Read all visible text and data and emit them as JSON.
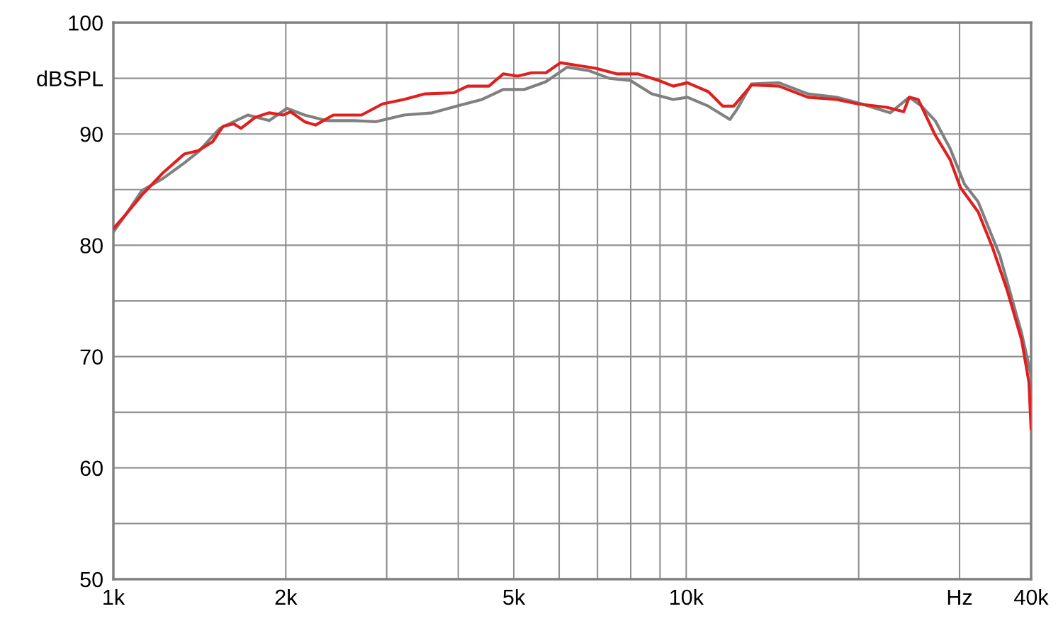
{
  "chart_data": {
    "type": "line",
    "log": "x",
    "grid": true,
    "xlim": [
      1000,
      40000
    ],
    "ylim": [
      50,
      100
    ],
    "xticks": [
      {
        "value": 1000,
        "label": "1k"
      },
      {
        "value": 2000,
        "label": "2k"
      },
      {
        "value": 3000,
        "label": null
      },
      {
        "value": 4000,
        "label": null
      },
      {
        "value": 5000,
        "label": "5k"
      },
      {
        "value": 6000,
        "label": null
      },
      {
        "value": 7000,
        "label": null
      },
      {
        "value": 8000,
        "label": null
      },
      {
        "value": 9000,
        "label": null
      },
      {
        "value": 10000,
        "label": "10k"
      },
      {
        "value": 20000,
        "label": null
      },
      {
        "value": 30000,
        "label": "Hz"
      },
      {
        "value": 40000,
        "label": "40k"
      }
    ],
    "yticks": [
      50,
      {
        "value": 55,
        "label": null
      },
      60,
      {
        "value": 65,
        "label": null
      },
      70,
      {
        "value": 75,
        "label": null
      },
      80,
      {
        "value": 85,
        "label": null
      },
      90,
      {
        "value": 95,
        "label": "dBSPL"
      },
      100
    ],
    "series": [
      {
        "color": "#e02020",
        "x": [
          1000,
          1044,
          1121,
          1220,
          1330,
          1407,
          1490,
          1555,
          1623,
          1670,
          1769,
          1871,
          1982,
          2038,
          2157,
          2254,
          2420,
          2711,
          2950,
          3214,
          3500,
          3925,
          4153,
          4524,
          4793,
          5075,
          5375,
          5693,
          6030,
          6385,
          6954,
          7560,
          8230,
          8960,
          9490,
          10050,
          10930,
          11580,
          12100,
          13000,
          14520,
          16310,
          18300,
          19950,
          22370,
          23970,
          24510,
          25400,
          27200,
          28880,
          30100,
          32330,
          34250,
          36310,
          38500,
          39650,
          40000
        ],
        "values": [
          81.5,
          82.6,
          84.5,
          86.5,
          88.2,
          88.5,
          89.3,
          90.7,
          90.9,
          90.5,
          91.5,
          91.9,
          91.7,
          92.0,
          91.1,
          90.8,
          91.7,
          91.7,
          92.7,
          93.1,
          93.6,
          93.7,
          94.3,
          94.3,
          95.4,
          95.2,
          95.5,
          95.5,
          96.4,
          96.2,
          95.9,
          95.4,
          95.4,
          94.8,
          94.3,
          94.6,
          93.8,
          92.5,
          92.5,
          94.4,
          94.3,
          93.3,
          93.1,
          92.7,
          92.4,
          92.0,
          93.3,
          93.1,
          89.9,
          87.7,
          85.2,
          83.0,
          79.8,
          76.0,
          71.5,
          67.7,
          63.5
        ]
      },
      {
        "color": "#808080",
        "x": [
          1000,
          1059,
          1121,
          1220,
          1330,
          1407,
          1533,
          1623,
          1718,
          1871,
          2009,
          2157,
          2353,
          2632,
          2868,
          3214,
          3604,
          4043,
          4401,
          4793,
          5222,
          5693,
          6195,
          6752,
          7343,
          7993,
          8705,
          9490,
          10050,
          10930,
          11920,
          12260,
          13000,
          14520,
          16310,
          18300,
          19950,
          22700,
          24510,
          25750,
          27200,
          28880,
          30600,
          32330,
          35260,
          38500,
          40000
        ],
        "values": [
          81.2,
          83.0,
          84.9,
          86.0,
          87.4,
          88.4,
          90.5,
          91.1,
          91.7,
          91.2,
          92.3,
          91.7,
          91.2,
          91.2,
          91.1,
          91.7,
          91.9,
          92.6,
          93.1,
          94.0,
          94.0,
          94.7,
          96.0,
          95.7,
          95.0,
          94.8,
          93.6,
          93.1,
          93.3,
          92.5,
          91.3,
          92.2,
          94.5,
          94.6,
          93.6,
          93.3,
          92.8,
          91.9,
          93.3,
          92.5,
          91.2,
          88.7,
          85.5,
          83.9,
          79.1,
          72.1,
          68.3
        ]
      }
    ]
  }
}
